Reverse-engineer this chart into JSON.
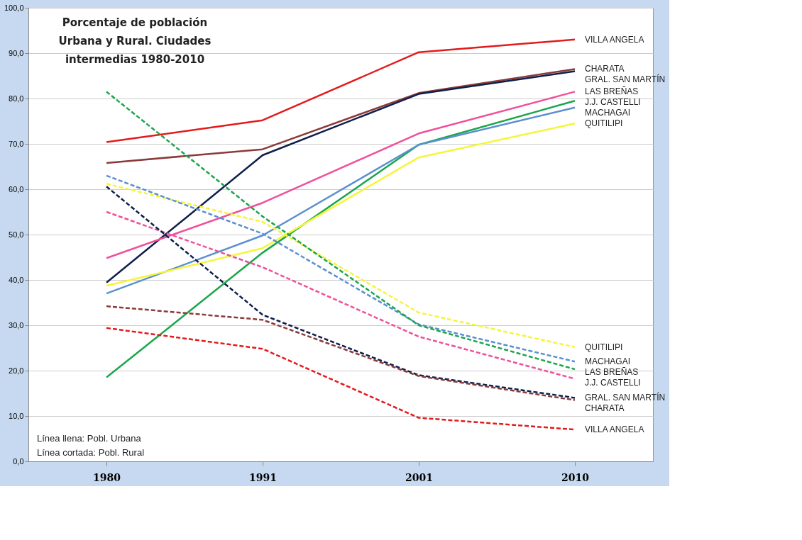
{
  "chart_data": {
    "type": "line",
    "title": "Porcentaje de población\nUrbana  y Rural. Ciudades\nintermedias 1980-2010",
    "categories": [
      "1980",
      "1991",
      "2001",
      "2010"
    ],
    "series": [
      {
        "name": "VILLA ANGELA",
        "color": "#e31a1c",
        "line_style": "solid",
        "values": [
          70.4,
          75.2,
          90.2,
          93.0
        ]
      },
      {
        "name": "CHARATA",
        "color": "#8b3a3a",
        "line_style": "solid",
        "values": [
          65.8,
          68.8,
          81.2,
          86.5
        ]
      },
      {
        "name": "GRAL. SAN MARTÍN",
        "color": "#0f1f4b",
        "line_style": "solid",
        "values": [
          39.4,
          67.5,
          81.0,
          86.0
        ]
      },
      {
        "name": "LAS BREÑAS",
        "color": "#f0509a",
        "line_style": "solid",
        "values": [
          44.8,
          57.0,
          72.3,
          81.5
        ]
      },
      {
        "name": "J.J. CASTELLI",
        "color": "#1aa64a",
        "line_style": "solid",
        "values": [
          18.5,
          46.0,
          69.8,
          79.5
        ]
      },
      {
        "name": "MACHAGAI",
        "color": "#5b8fd0",
        "line_style": "solid",
        "values": [
          37.0,
          49.8,
          69.8,
          78.0
        ]
      },
      {
        "name": "QUITILIPI",
        "color": "#f5f53a",
        "line_style": "solid",
        "values": [
          38.7,
          47.0,
          67.0,
          74.5
        ]
      },
      {
        "name": "QUITILIPI",
        "color": "#f5f53a",
        "line_style": "dashed",
        "values": [
          61.2,
          52.8,
          32.8,
          25.2
        ]
      },
      {
        "name": "MACHAGAI",
        "color": "#5b8fd0",
        "line_style": "dashed",
        "values": [
          63.0,
          50.2,
          30.2,
          22.0
        ]
      },
      {
        "name": "LAS BREÑAS",
        "color": "#1aa64a",
        "line_style": "dashed",
        "values": [
          81.5,
          54.0,
          30.0,
          20.3
        ]
      },
      {
        "name": "J.J. CASTELLI",
        "color": "#f0509a",
        "line_style": "dashed",
        "values": [
          55.0,
          42.8,
          27.5,
          18.2
        ]
      },
      {
        "name": "GRAL. SAN MARTÍN",
        "color": "#0f1f4b",
        "line_style": "dashed",
        "values": [
          60.6,
          32.3,
          19.0,
          14.0
        ]
      },
      {
        "name": "CHARATA",
        "color": "#8b3a3a",
        "line_style": "dashed",
        "values": [
          34.2,
          31.2,
          18.8,
          13.5
        ]
      },
      {
        "name": "VILLA ANGELA",
        "color": "#e31a1c",
        "line_style": "dashed",
        "values": [
          29.4,
          24.8,
          9.6,
          7.0
        ]
      }
    ],
    "ylim": [
      0,
      100
    ],
    "yticks": [
      {
        "value": 0,
        "label": "0,0"
      },
      {
        "value": 10,
        "label": "10,0"
      },
      {
        "value": 20,
        "label": "20,0"
      },
      {
        "value": 30,
        "label": "30,0"
      },
      {
        "value": 40,
        "label": "40,0"
      },
      {
        "value": 50,
        "label": "50,0"
      },
      {
        "value": 60,
        "label": "60,0"
      },
      {
        "value": 70,
        "label": "70,0"
      },
      {
        "value": 80,
        "label": "80,0"
      },
      {
        "value": 90,
        "label": "90,0"
      },
      {
        "value": 100,
        "label": "100,0"
      }
    ],
    "grid": "y",
    "marker": "none",
    "annotations": [
      "Línea llena: Pobl. Urbana",
      "Línea cortada: Pobl. Rural"
    ]
  }
}
